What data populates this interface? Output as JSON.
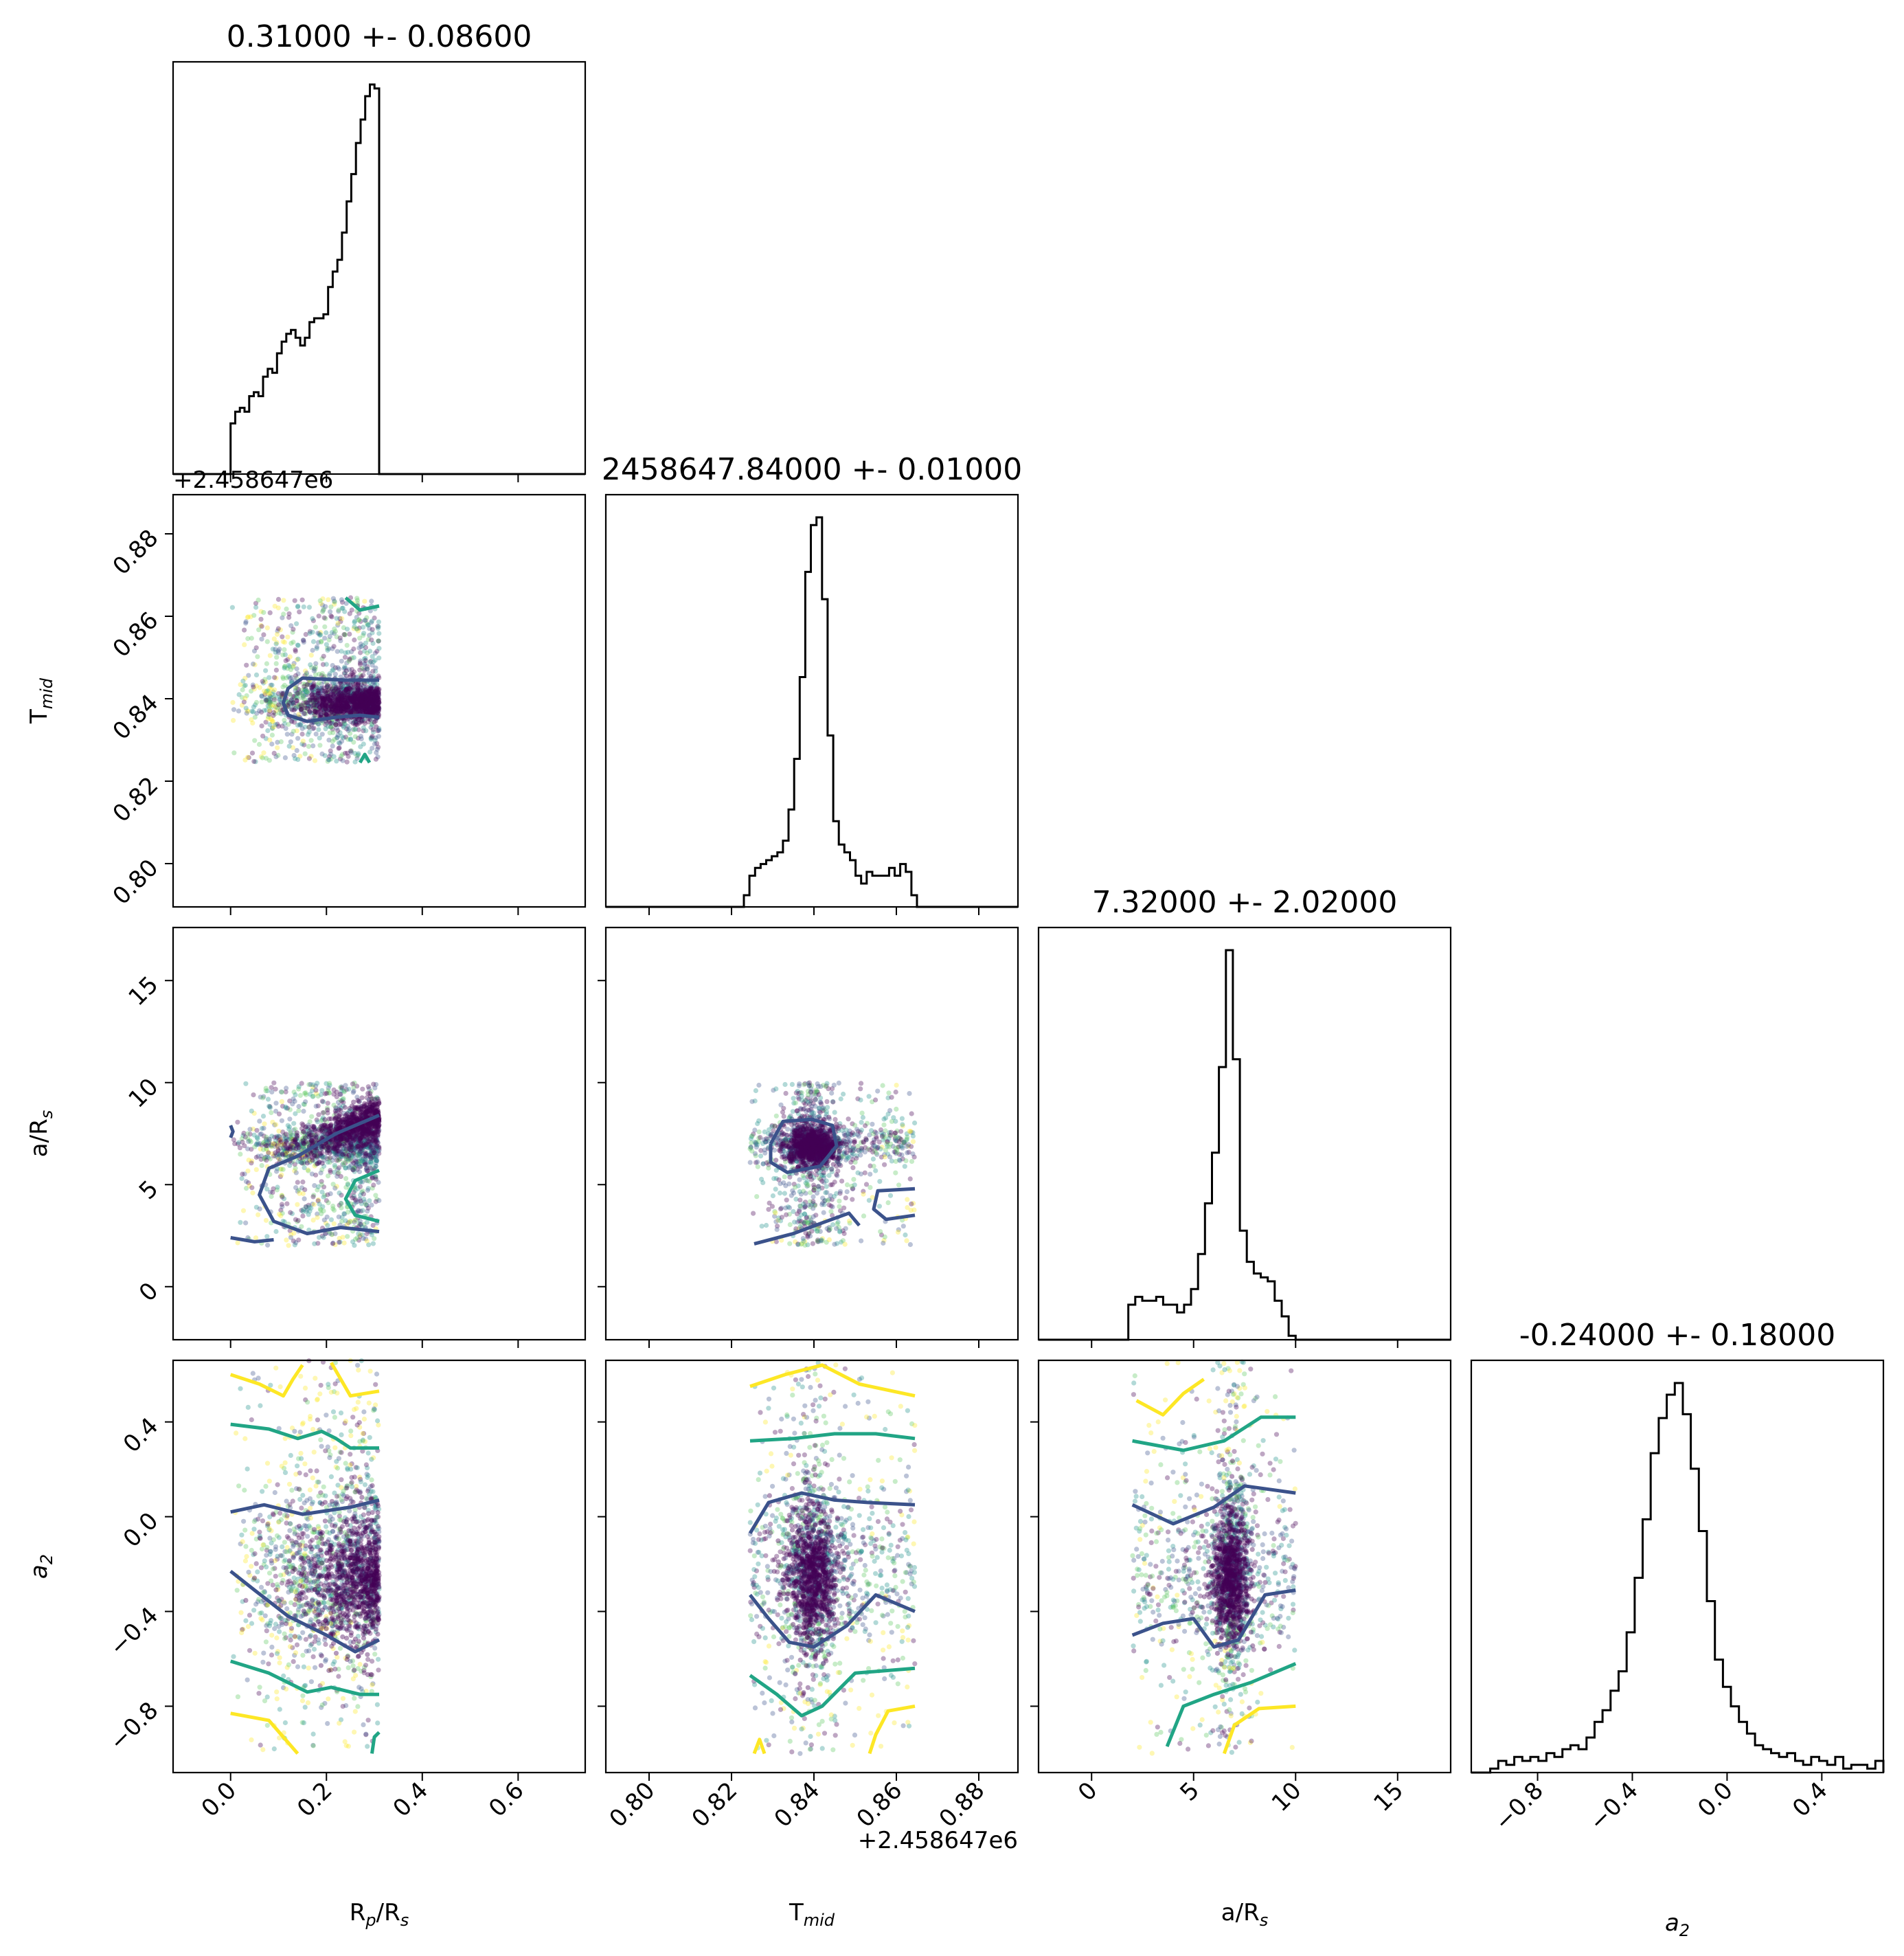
{
  "chart_data": {
    "type": "scatter",
    "layout": "corner",
    "parameters": [
      "Rp/Rs",
      "Tmid",
      "a/Rs",
      "a2"
    ],
    "axis_labels": {
      "Rp/Rs": {
        "main": "R",
        "sub1": "p",
        "mid": "/R",
        "sub2": "s"
      },
      "Tmid": {
        "main": "T",
        "sub1": "mid",
        "mid": "",
        "sub2": ""
      },
      "a/Rs": {
        "main": "a/R",
        "sub1": "s",
        "mid": "",
        "sub2": ""
      },
      "a2": {
        "main": "a",
        "sub1": "2",
        "mid": "",
        "sub2": ""
      }
    },
    "titles": [
      "0.31000 +- 0.08600",
      "2458647.84000 +- 0.01000",
      "7.32000 +- 2.02000",
      "-0.24000 +- 0.18000"
    ],
    "offset_text": "+2.458647e6",
    "ranges": {
      "Rp/Rs": [
        -0.12,
        0.74
      ],
      "Tmid": [
        0.7895,
        0.8895
      ],
      "a/Rs": [
        -2.6,
        17.6
      ],
      "a2": [
        -1.08,
        0.66
      ]
    },
    "ticks": {
      "Rp/Rs": {
        "values": [
          0.0,
          0.2,
          0.4,
          0.6
        ],
        "labels": [
          "0.0",
          "0.2",
          "0.4",
          "0.6"
        ]
      },
      "Tmid": {
        "values": [
          0.8,
          0.82,
          0.84,
          0.86,
          0.88
        ],
        "labels": [
          "0.80",
          "0.82",
          "0.84",
          "0.86",
          "0.88"
        ]
      },
      "a/Rs": {
        "values": [
          0,
          5,
          10,
          15
        ],
        "labels": [
          "0",
          "5",
          "10",
          "15"
        ]
      },
      "a2": {
        "values": [
          -0.8,
          -0.4,
          0.0,
          0.4
        ],
        "labels": [
          "−0.8",
          "−0.4",
          "0.0",
          "0.4"
        ]
      }
    },
    "histograms": {
      "Rp/Rs": {
        "bin_edges": [
          0.0,
          0.31
        ],
        "heights": [
          0.13,
          0.16,
          0.17,
          0.16,
          0.2,
          0.21,
          0.2,
          0.25,
          0.27,
          0.26,
          0.31,
          0.34,
          0.36,
          0.37,
          0.35,
          0.33,
          0.35,
          0.39,
          0.4,
          0.4,
          0.41,
          0.48,
          0.52,
          0.55,
          0.62,
          0.7,
          0.77,
          0.85,
          0.91,
          0.97,
          1.0,
          0.99
        ]
      },
      "Tmid": {
        "bin_edges": [
          0.823,
          0.865
        ],
        "heights": [
          0.03,
          0.08,
          0.1,
          0.11,
          0.12,
          0.13,
          0.14,
          0.17,
          0.25,
          0.38,
          0.59,
          0.86,
          0.98,
          1.0,
          0.79,
          0.44,
          0.22,
          0.16,
          0.14,
          0.12,
          0.08,
          0.06,
          0.09,
          0.08,
          0.08,
          0.08,
          0.1,
          0.08,
          0.11,
          0.09,
          0.03
        ]
      },
      "a/Rs": {
        "bin_edges": [
          1.8,
          10.0
        ],
        "heights": [
          0.09,
          0.11,
          0.1,
          0.1,
          0.11,
          0.09,
          0.09,
          0.07,
          0.09,
          0.13,
          0.22,
          0.35,
          0.48,
          0.7,
          1.0,
          0.72,
          0.28,
          0.2,
          0.17,
          0.16,
          0.15,
          0.1,
          0.06,
          0.01
        ]
      },
      "a2": {
        "bin_edges": [
          -1.0,
          0.66
        ],
        "heights": [
          0.01,
          0.03,
          0.02,
          0.04,
          0.03,
          0.04,
          0.03,
          0.05,
          0.04,
          0.06,
          0.07,
          0.06,
          0.09,
          0.13,
          0.16,
          0.21,
          0.26,
          0.36,
          0.5,
          0.65,
          0.82,
          0.91,
          0.97,
          1.0,
          0.92,
          0.78,
          0.62,
          0.44,
          0.29,
          0.22,
          0.17,
          0.13,
          0.1,
          0.07,
          0.06,
          0.05,
          0.04,
          0.05,
          0.03,
          0.02,
          0.04,
          0.03,
          0.02,
          0.04,
          0.01,
          0.02,
          0.02,
          0.01,
          0.03
        ]
      }
    },
    "scatter_regions": {
      "Rp/Rs": [
        0.0,
        0.31
      ],
      "Tmid": [
        0.8245,
        0.8645
      ],
      "a/Rs": [
        2.0,
        10.0
      ],
      "a2": [
        -1.0,
        0.66
      ]
    },
    "contour_colors": {
      "inner": "#3b528b",
      "middle": "#21a585",
      "outer": "#fde725"
    },
    "point_colors": [
      "#440154",
      "#3b528b",
      "#21918c",
      "#5ec962",
      "#fde725"
    ]
  }
}
